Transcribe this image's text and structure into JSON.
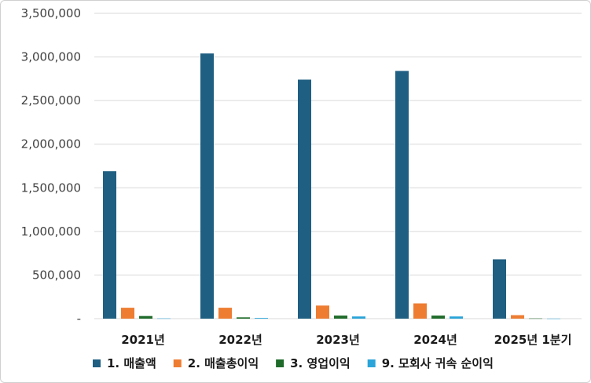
{
  "chart_data": {
    "type": "bar",
    "categories": [
      "2021년",
      "2022년",
      "2023년",
      "2024년",
      "2025년 1분기"
    ],
    "series": [
      {
        "name": "1. 매출액",
        "color": "#1f5f82",
        "values": [
          1690000,
          3040000,
          2740000,
          2840000,
          680000
        ]
      },
      {
        "name": "2. 매출총이익",
        "color": "#ee7d32",
        "values": [
          125000,
          125000,
          150000,
          175000,
          40000
        ]
      },
      {
        "name": "3. 영업이익",
        "color": "#1e6b2a",
        "values": [
          30000,
          15000,
          35000,
          35000,
          3000
        ]
      },
      {
        "name": "9. 모회사 귀속 순이익",
        "color": "#2aa4d9",
        "values": [
          3000,
          8000,
          25000,
          25000,
          1000
        ]
      }
    ],
    "ylim": [
      0,
      3500000
    ],
    "yticks": [
      "-",
      "500,000",
      "1,000,000",
      "1,500,000",
      "2,000,000",
      "2,500,000",
      "3,000,000",
      "3,500,000"
    ],
    "ytick_values": [
      0,
      500000,
      1000000,
      1500000,
      2000000,
      2500000,
      3000000,
      3500000
    ],
    "grid": true,
    "legend": "bottom"
  }
}
